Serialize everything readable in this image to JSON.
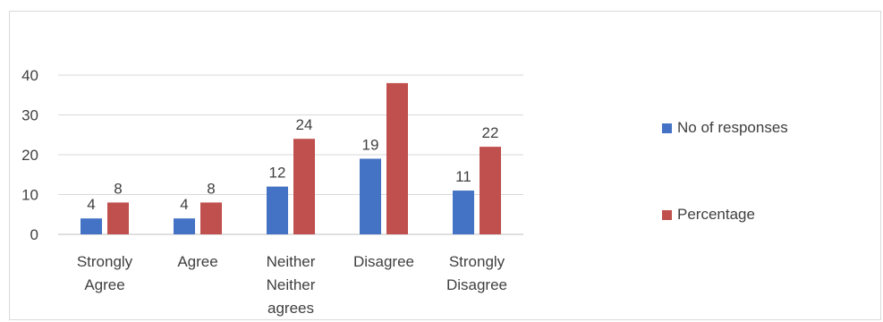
{
  "chart_data": {
    "type": "bar",
    "categories": [
      [
        "Strongly",
        "Agree"
      ],
      [
        "Agree"
      ],
      [
        "Neither",
        "Neither",
        "agrees"
      ],
      [
        "Disagree"
      ],
      [
        "Strongly",
        "Disagree"
      ]
    ],
    "series": [
      {
        "name": "No of responses",
        "color": "#4472c4",
        "values": [
          4,
          4,
          12,
          19,
          11
        ],
        "labels": [
          "4",
          "4",
          "12",
          "19",
          "11"
        ]
      },
      {
        "name": "Percentage",
        "color": "#c0504d",
        "values": [
          8,
          8,
          24,
          38,
          22
        ],
        "labels": [
          "8",
          "8",
          "24",
          "",
          "22"
        ]
      }
    ],
    "yticks": [
      "0",
      "10",
      "20",
      "30",
      "40"
    ],
    "ylim": [
      0,
      40
    ],
    "grid": true,
    "legend": "right"
  }
}
